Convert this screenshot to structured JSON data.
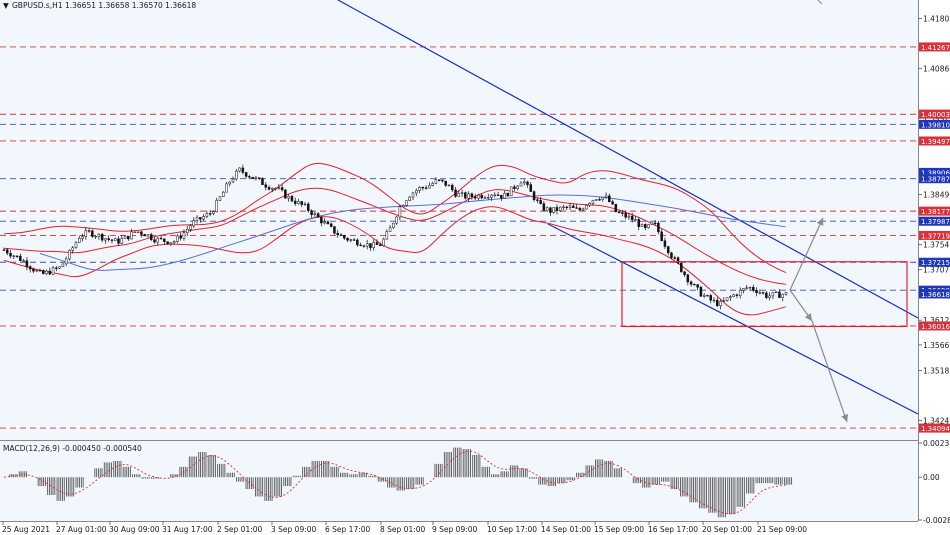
{
  "header": {
    "symbol_line": "GBPUSD.s,H1  1.36651 1.36658 1.36570 1.36618",
    "macd_line": "MACD(12,26,9) -0.000450 -0.000540"
  },
  "colors": {
    "background": "#f2f7fd",
    "candle": "#111111",
    "bollinger": "#e8202a",
    "moving_average": "#5a6fd8",
    "channel": "#1a2fc9",
    "support_resistance_red": "#d9303a",
    "level_blue": "#3a4fb8",
    "rectangle": "#e8202a",
    "arrow": "#8a8a8a",
    "badge_red": "#d9303a",
    "badge_blue": "#1f37b8"
  },
  "chart_data": {
    "type": "candlestick",
    "symbol": "GBPUSD.s",
    "timeframe": "H1",
    "ohlc_last": {
      "open": 1.36651,
      "high": 1.36658,
      "low": 1.3657,
      "close": 1.36618
    },
    "ylim": [
      1.3387,
      1.4215
    ],
    "y_ticks": [
      1.41805,
      1.40865,
      1.39925,
      1.3849,
      1.37545,
      1.37075,
      1.36125,
      1.3566,
      1.3518,
      1.3424
    ],
    "x_tick_labels": [
      "25 Aug 2021",
      "27 Aug 01:00",
      "30 Aug 09:00",
      "31 Aug 17:00",
      "2 Sep 01:00",
      "3 Sep 09:00",
      "6 Sep 17:00",
      "8 Sep 01:00",
      "9 Sep 09:00",
      "10 Sep 17:00",
      "14 Sep 01:00",
      "15 Sep 09:00",
      "16 Sep 17:00",
      "20 Sep 01:00",
      "21 Sep 09:00"
    ],
    "price_path_close": [
      1.3745,
      1.3735,
      1.3725,
      1.371,
      1.3698,
      1.3705,
      1.3712,
      1.374,
      1.377,
      1.3778,
      1.3772,
      1.3765,
      1.376,
      1.3768,
      1.378,
      1.3775,
      1.3765,
      1.3762,
      1.376,
      1.3775,
      1.3795,
      1.3805,
      1.3815,
      1.3845,
      1.3875,
      1.3895,
      1.3885,
      1.3875,
      1.3865,
      1.386,
      1.3845,
      1.3835,
      1.3825,
      1.381,
      1.3795,
      1.378,
      1.3768,
      1.3762,
      1.3758,
      1.3752,
      1.3755,
      1.3785,
      1.3825,
      1.3848,
      1.386,
      1.3865,
      1.3875,
      1.3868,
      1.385,
      1.3845,
      1.3846,
      1.3848,
      1.3852,
      1.3845,
      1.386,
      1.3878,
      1.385,
      1.3825,
      1.3818,
      1.3822,
      1.3825,
      1.3818,
      1.3835,
      1.3845,
      1.3842,
      1.3815,
      1.3808,
      1.38,
      1.3782,
      1.3795,
      1.376,
      1.373,
      1.3705,
      1.368,
      1.3662,
      1.365,
      1.3642,
      1.3655,
      1.3665,
      1.3675,
      1.3668,
      1.3658,
      1.366,
      1.3662
    ],
    "bollinger_upper": [
      1.3775,
      1.3777,
      1.3784,
      1.379,
      1.3788,
      1.3785,
      1.378,
      1.378,
      1.3784,
      1.379,
      1.3792,
      1.3792,
      1.3798,
      1.3815,
      1.384,
      1.386,
      1.3888,
      1.391,
      1.3904,
      1.389,
      1.3875,
      1.385,
      1.3822,
      1.3808,
      1.383,
      1.3855,
      1.3885,
      1.3905,
      1.3902,
      1.3885,
      1.3875,
      1.3868,
      1.389,
      1.3895,
      1.3888,
      1.3877,
      1.387,
      1.386,
      1.384,
      1.3815,
      1.3775,
      1.3742,
      1.3718,
      1.3702
    ],
    "bollinger_lower": [
      1.3725,
      1.3715,
      1.3706,
      1.37,
      1.3692,
      1.3705,
      1.3725,
      1.3738,
      1.3752,
      1.3756,
      1.3755,
      1.3752,
      1.3745,
      1.3738,
      1.3742,
      1.3766,
      1.3792,
      1.3806,
      1.3808,
      1.3795,
      1.3775,
      1.3748,
      1.3742,
      1.3738,
      1.3772,
      1.3802,
      1.3822,
      1.3828,
      1.3815,
      1.38,
      1.3795,
      1.3784,
      1.3778,
      1.3772,
      1.3763,
      1.3755,
      1.3742,
      1.3722,
      1.3695,
      1.3665,
      1.3632,
      1.362,
      1.3628,
      1.3638
    ],
    "bollinger_middle": [
      1.3748,
      1.3745,
      1.3742,
      1.3742,
      1.3738,
      1.3745,
      1.3752,
      1.3756,
      1.3768,
      1.3775,
      1.378,
      1.3785,
      1.379,
      1.3808,
      1.3825,
      1.384,
      1.3855,
      1.3862,
      1.3858,
      1.3845,
      1.3832,
      1.3818,
      1.3805,
      1.3798,
      1.3812,
      1.383,
      1.3848,
      1.386,
      1.3855,
      1.3845,
      1.3838,
      1.3832,
      1.383,
      1.3828,
      1.3818,
      1.3805,
      1.3788,
      1.377,
      1.3748,
      1.3728,
      1.371,
      1.3695,
      1.3685,
      1.368
    ],
    "moving_average": [
      1.3738,
      1.3722,
      1.3705,
      1.3708,
      1.371,
      1.372,
      1.3735,
      1.3752,
      1.3768,
      1.3785,
      1.3802,
      1.3815,
      1.3822,
      1.3825,
      1.3828,
      1.383,
      1.3835,
      1.384,
      1.3844,
      1.3848,
      1.3848,
      1.3845,
      1.3838,
      1.383,
      1.3822,
      1.3812,
      1.3802,
      1.3795,
      1.3788
    ],
    "horizontal_levels_red": [
      1.41267,
      1.4,
      1.39497,
      1.38177,
      1.37719,
      1.36016,
      1.34094
    ],
    "horizontal_levels_blue": [
      1.3981,
      1.38787,
      1.37987,
      1.37215,
      1.3669
    ],
    "price_badges": [
      {
        "value": "1.41267",
        "color": "red"
      },
      {
        "value": "1.40003",
        "color": "red"
      },
      {
        "value": "1.39810",
        "color": "blue"
      },
      {
        "value": "1.39497",
        "color": "red"
      },
      {
        "value": "1.38906",
        "color": "blue"
      },
      {
        "value": "1.38787",
        "color": "blue"
      },
      {
        "value": "1.38177",
        "color": "red"
      },
      {
        "value": "1.37987",
        "color": "blue"
      },
      {
        "value": "1.37719",
        "color": "red"
      },
      {
        "value": "1.37215",
        "color": "blue"
      },
      {
        "value": "1.36690",
        "color": "blue"
      },
      {
        "value": "1.36618",
        "color": "blue"
      },
      {
        "value": "1.36016",
        "color": "red"
      },
      {
        "value": "1.34094",
        "color": "red"
      }
    ],
    "macd": {
      "ylim": [
        -0.002889,
        0.00231
      ],
      "y_ticks": [
        "0.00231",
        "0.00",
        "-0.002889"
      ],
      "histogram": [
        0.0,
        0.0002,
        0.0004,
        0.0,
        -0.0006,
        -0.0012,
        -0.0016,
        -0.0013,
        -0.0007,
        0.0,
        0.0006,
        0.001,
        0.0011,
        0.0007,
        0.0002,
        -0.0001,
        -0.0001,
        0.0,
        0.0002,
        0.0007,
        0.0014,
        0.0017,
        0.0015,
        0.0009,
        0.0003,
        -0.0003,
        -0.0008,
        -0.0013,
        -0.0016,
        -0.0013,
        -0.0006,
        0.0001,
        0.0007,
        0.0011,
        0.0011,
        0.0007,
        0.0003,
        0.0002,
        0.0003,
        0.0001,
        -0.0003,
        -0.0007,
        -0.0009,
        -0.0008,
        -0.0005,
        0.0,
        0.0009,
        0.0017,
        0.002,
        0.0019,
        0.0015,
        0.0007,
        0.0002,
        0.0004,
        0.0008,
        0.0006,
        -0.0001,
        -0.0005,
        -0.0006,
        -0.0004,
        -0.0002,
        0.0003,
        0.0008,
        0.0012,
        0.0011,
        0.0006,
        0.0,
        -0.0004,
        -0.0007,
        -0.0005,
        -0.0003,
        -0.0008,
        -0.0013,
        -0.0017,
        -0.0021,
        -0.0024,
        -0.0027,
        -0.0025,
        -0.002,
        -0.0011,
        -0.0004,
        -0.0004,
        -0.0005,
        -0.0005
      ],
      "signal": [
        0.0,
        0.0001,
        0.0002,
        0.0001,
        -0.0002,
        -0.0006,
        -0.001,
        -0.0012,
        -0.001,
        -0.0006,
        -0.0001,
        0.0004,
        0.0008,
        0.0009,
        0.0006,
        0.0002,
        0.0,
        -0.0001,
        0.0,
        0.0003,
        0.0008,
        0.0013,
        0.0015,
        0.0013,
        0.0008,
        0.0002,
        -0.0004,
        -0.0009,
        -0.0013,
        -0.0014,
        -0.0011,
        -0.0005,
        0.0002,
        0.0007,
        0.001,
        0.0009,
        0.0006,
        0.0004,
        0.0003,
        0.0002,
        -0.0001,
        -0.0004,
        -0.0007,
        -0.0008,
        -0.0007,
        -0.0004,
        0.0002,
        0.0009,
        0.0015,
        0.0018,
        0.0017,
        0.0012,
        0.0007,
        0.0005,
        0.0006,
        0.0006,
        0.0003,
        -0.0001,
        -0.0004,
        -0.0004,
        -0.0003,
        0.0,
        0.0004,
        0.0008,
        0.001,
        0.0008,
        0.0004,
        -0.0001,
        -0.0004,
        -0.0005,
        -0.0005,
        -0.0007,
        -0.001,
        -0.0014,
        -0.0018,
        -0.0021,
        -0.0024,
        -0.0025,
        -0.0023,
        -0.0017,
        -0.001,
        -0.0007,
        -0.0006,
        -0.0005
      ]
    }
  }
}
